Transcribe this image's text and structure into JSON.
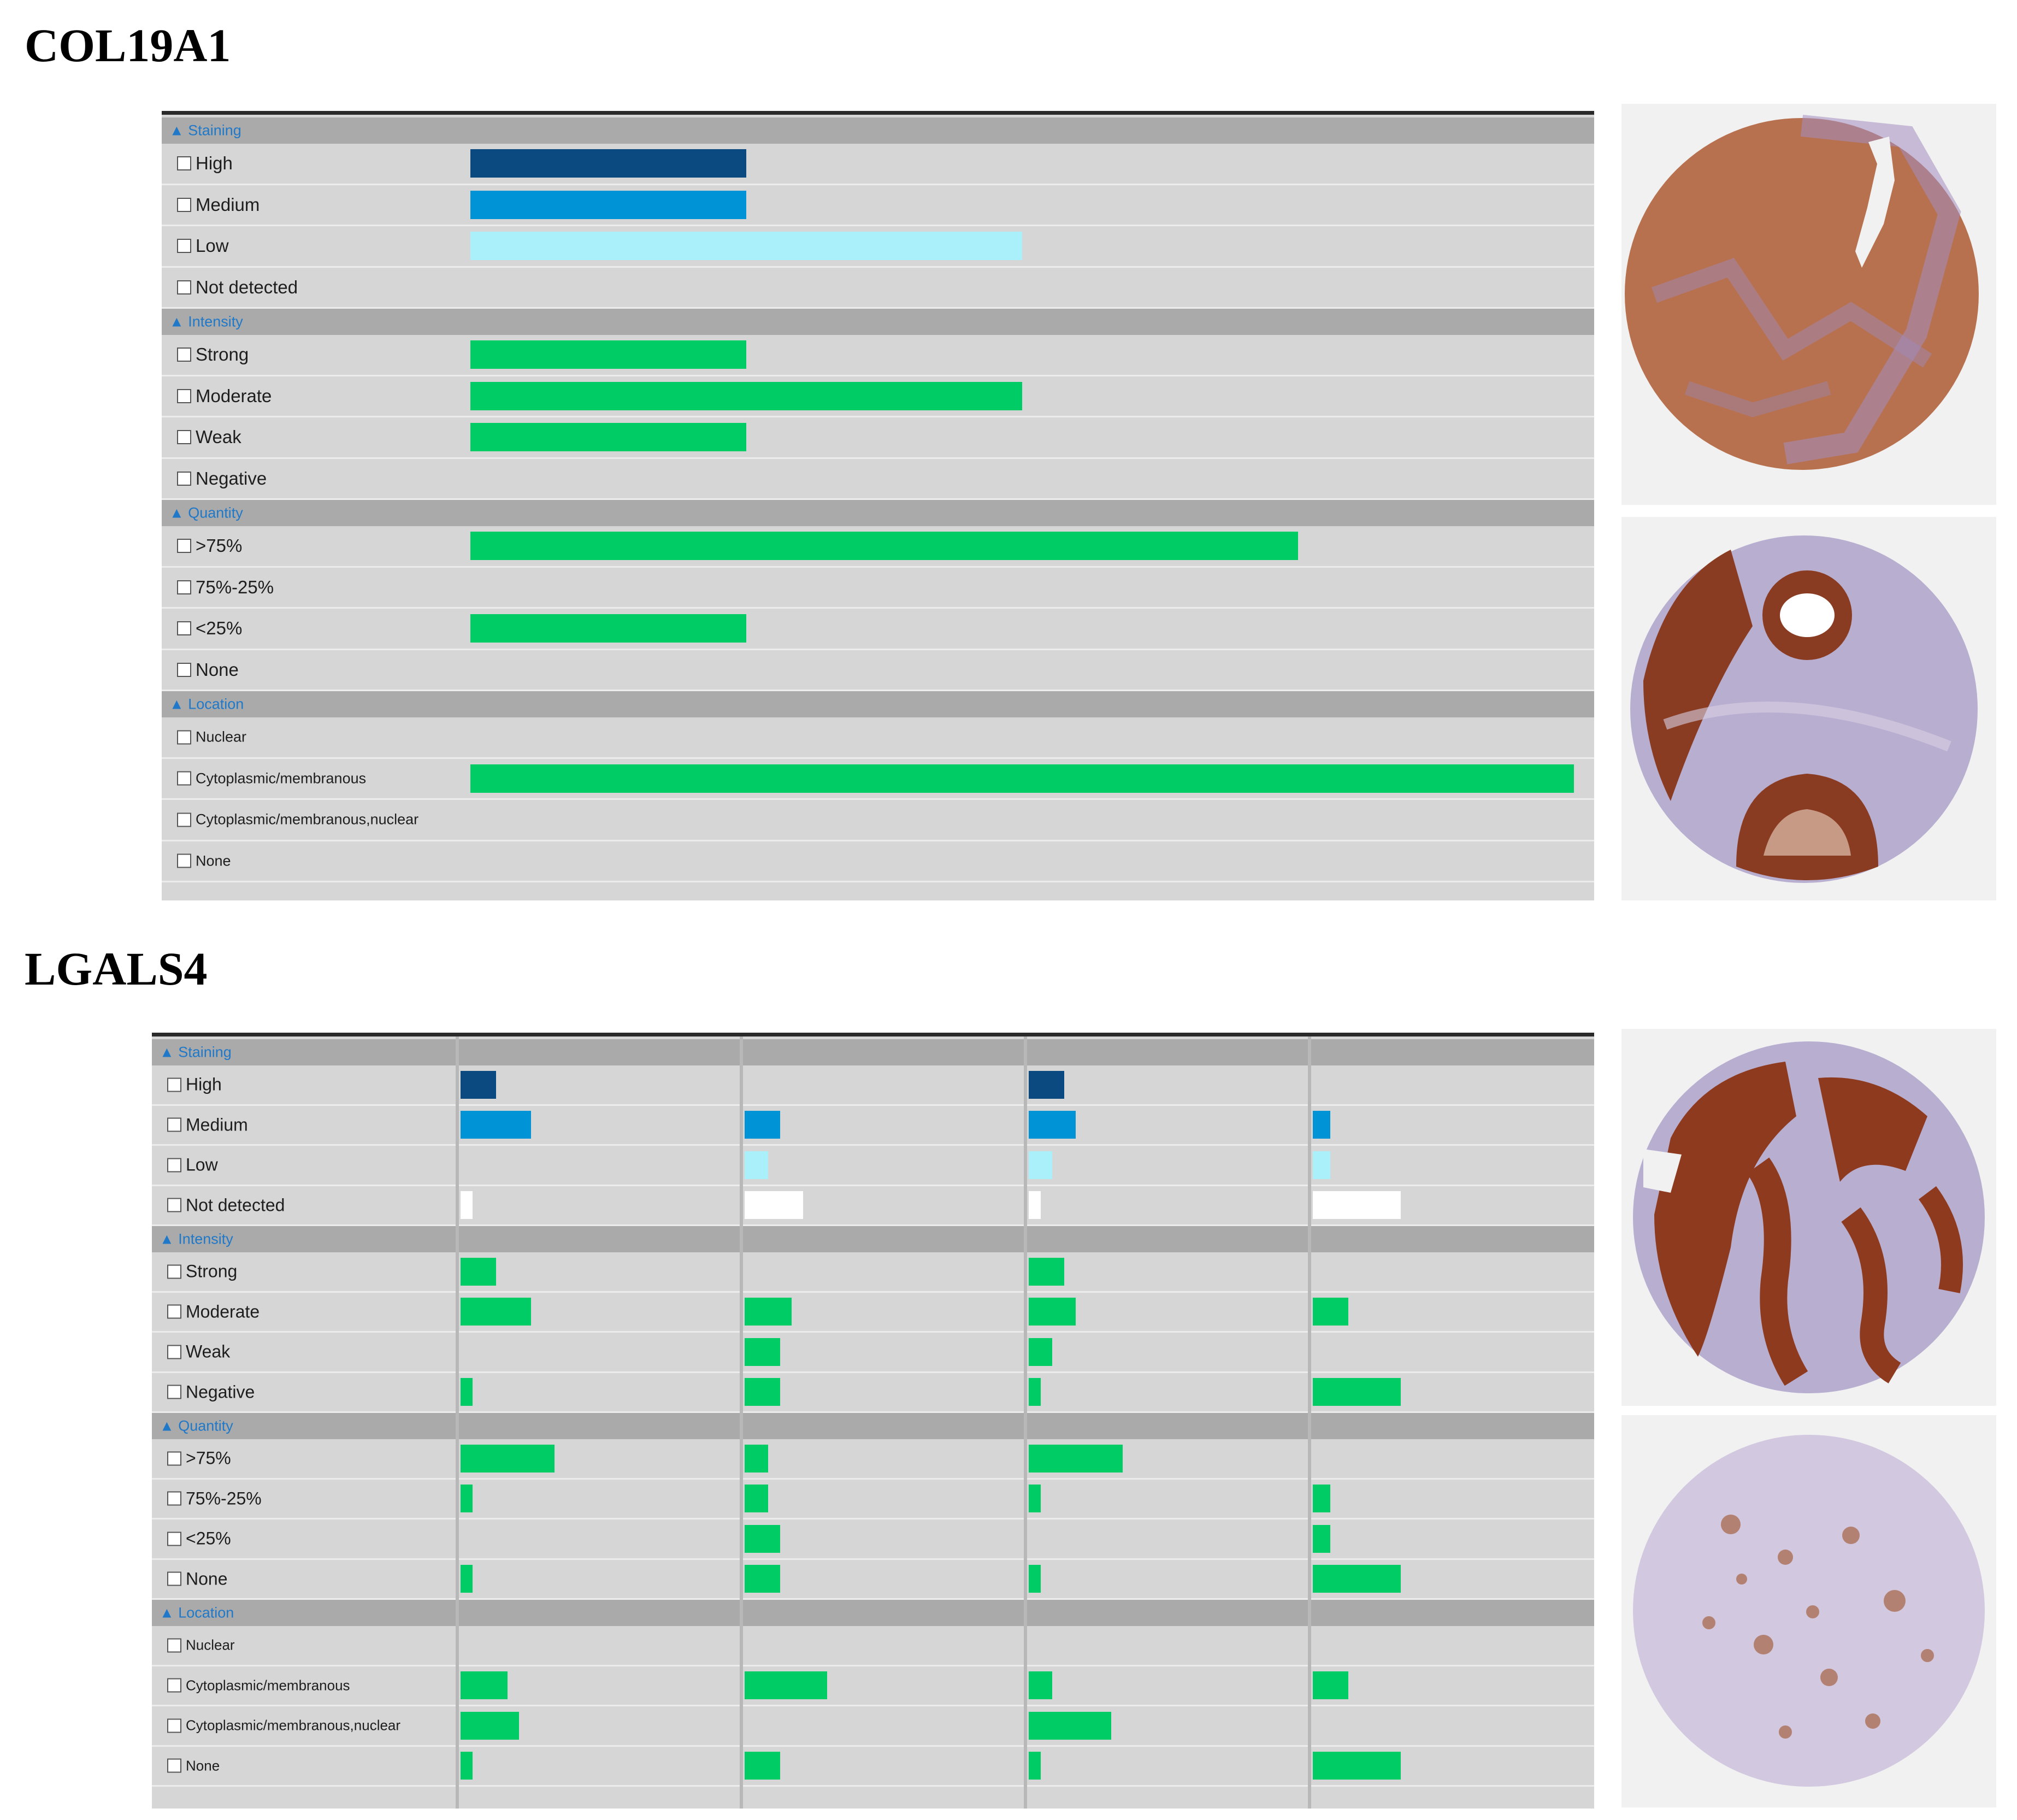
{
  "colors": {
    "high": "#0b4a80",
    "medium": "#0093d6",
    "low": "#aaf0fb",
    "not_detected": "#ffffff",
    "quantity": "#00cc66"
  },
  "panels": [
    {
      "title": "COL19A1",
      "columns": 1,
      "sections": [
        {
          "label": "▲ Staining",
          "items": [
            {
              "label": "High",
              "color": "high",
              "values": [
                0.25
              ]
            },
            {
              "label": "Medium",
              "color": "medium",
              "values": [
                0.25
              ]
            },
            {
              "label": "Low",
              "color": "low",
              "values": [
                0.5
              ]
            },
            {
              "label": "Not detected",
              "color": "not_detected",
              "values": [
                0
              ]
            }
          ]
        },
        {
          "label": "▲ Intensity",
          "items": [
            {
              "label": "Strong",
              "color": "quantity",
              "values": [
                0.25
              ]
            },
            {
              "label": "Moderate",
              "color": "quantity",
              "values": [
                0.5
              ]
            },
            {
              "label": "Weak",
              "color": "quantity",
              "values": [
                0.25
              ]
            },
            {
              "label": "Negative",
              "color": "quantity",
              "values": [
                0
              ]
            }
          ]
        },
        {
          "label": "▲ Quantity",
          "items": [
            {
              "label": ">75%",
              "color": "quantity",
              "values": [
                0.75
              ]
            },
            {
              "label": "75%-25%",
              "color": "quantity",
              "values": [
                0
              ]
            },
            {
              "label": "<25%",
              "color": "quantity",
              "values": [
                0.25
              ]
            },
            {
              "label": "None",
              "color": "quantity",
              "values": [
                0
              ]
            }
          ]
        },
        {
          "label": "▲ Location",
          "items": [
            {
              "label": "Nuclear",
              "color": "quantity",
              "values": [
                0
              ],
              "small": true
            },
            {
              "label": "Cytoplasmic/membranous",
              "color": "quantity",
              "values": [
                1.0
              ],
              "small": true
            },
            {
              "label": "Cytoplasmic/membranous,nuclear",
              "color": "quantity",
              "values": [
                0
              ],
              "small": true
            },
            {
              "label": "None",
              "color": "quantity",
              "values": [
                0
              ],
              "small": true
            }
          ]
        }
      ]
    },
    {
      "title": "LGALS4",
      "columns": 4,
      "sections": [
        {
          "label": "▲ Staining",
          "items": [
            {
              "label": "High",
              "color": "high",
              "values": [
                0.125,
                0,
                0.125,
                0
              ]
            },
            {
              "label": "Medium",
              "color": "medium",
              "values": [
                0.25,
                0.125,
                0.167,
                0.0625
              ]
            },
            {
              "label": "Low",
              "color": "low",
              "values": [
                0,
                0.083,
                0.083,
                0.0625
              ]
            },
            {
              "label": "Not detected",
              "color": "not_detected",
              "values": [
                0.042,
                0.208,
                0.042,
                0.3125
              ]
            }
          ]
        },
        {
          "label": "▲ Intensity",
          "items": [
            {
              "label": "Strong",
              "color": "quantity",
              "values": [
                0.125,
                0,
                0.125,
                0
              ]
            },
            {
              "label": "Moderate",
              "color": "quantity",
              "values": [
                0.25,
                0.167,
                0.167,
                0.125
              ]
            },
            {
              "label": "Weak",
              "color": "quantity",
              "values": [
                0,
                0.125,
                0.083,
                0
              ]
            },
            {
              "label": "Negative",
              "color": "quantity",
              "values": [
                0.042,
                0.125,
                0.042,
                0.3125
              ]
            }
          ]
        },
        {
          "label": "▲ Quantity",
          "items": [
            {
              "label": ">75%",
              "color": "quantity",
              "values": [
                0.333,
                0.083,
                0.333,
                0
              ]
            },
            {
              "label": "75%-25%",
              "color": "quantity",
              "values": [
                0.042,
                0.083,
                0.042,
                0.0625
              ]
            },
            {
              "label": "<25%",
              "color": "quantity",
              "values": [
                0,
                0.125,
                0,
                0.0625
              ]
            },
            {
              "label": "None",
              "color": "quantity",
              "values": [
                0.042,
                0.125,
                0.042,
                0.3125
              ]
            }
          ]
        },
        {
          "label": "▲ Location",
          "items": [
            {
              "label": "Nuclear",
              "color": "quantity",
              "values": [
                0,
                0,
                0,
                0
              ],
              "small": true
            },
            {
              "label": "Cytoplasmic/membranous",
              "color": "quantity",
              "values": [
                0.167,
                0.292,
                0.083,
                0.125
              ],
              "small": true
            },
            {
              "label": "Cytoplasmic/membranous,nuclear",
              "color": "quantity",
              "values": [
                0.208,
                0,
                0.292,
                0
              ],
              "small": true
            },
            {
              "label": "None",
              "color": "quantity",
              "values": [
                0.042,
                0.125,
                0.042,
                0.3125
              ],
              "small": true
            }
          ]
        }
      ]
    }
  ]
}
